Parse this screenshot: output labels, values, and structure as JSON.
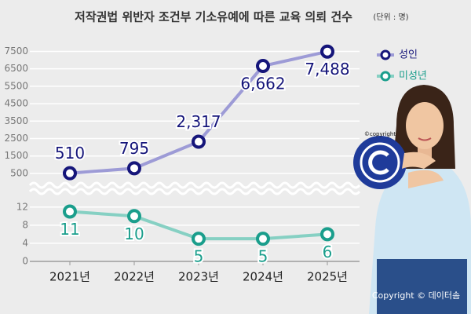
{
  "chart_data": {
    "type": "line",
    "title": "저작권법 위반자 조건부 기소유예에 따른 교육 의뢰 건수",
    "subtitle": "(단위 : 명)",
    "categories": [
      "2021년",
      "2022년",
      "2023년",
      "2024년",
      "2025년"
    ],
    "series": [
      {
        "name": "성인",
        "color": "#15157a",
        "line_color": "#9d9bd6",
        "values": [
          510,
          795,
          2317,
          6662,
          7488
        ],
        "value_labels": [
          "510",
          "795",
          "2,317",
          "6,662",
          "7,488"
        ]
      },
      {
        "name": "미성년",
        "color": "#1a9e8c",
        "line_color": "#86d0c3",
        "axis": "y2",
        "values": [
          11,
          10,
          5,
          5,
          6
        ]
      }
    ],
    "ylim": [
      0,
      7700
    ],
    "yticks": [
      500,
      1500,
      2500,
      3500,
      4500,
      5500,
      6500,
      7500
    ],
    "y2lim": [
      0,
      13
    ],
    "y2ticks": [
      0,
      4,
      8,
      12
    ],
    "grid": true,
    "legend": "top-right",
    "badge_text": "©copyright",
    "credit": "Copyright © 데이터솜"
  }
}
